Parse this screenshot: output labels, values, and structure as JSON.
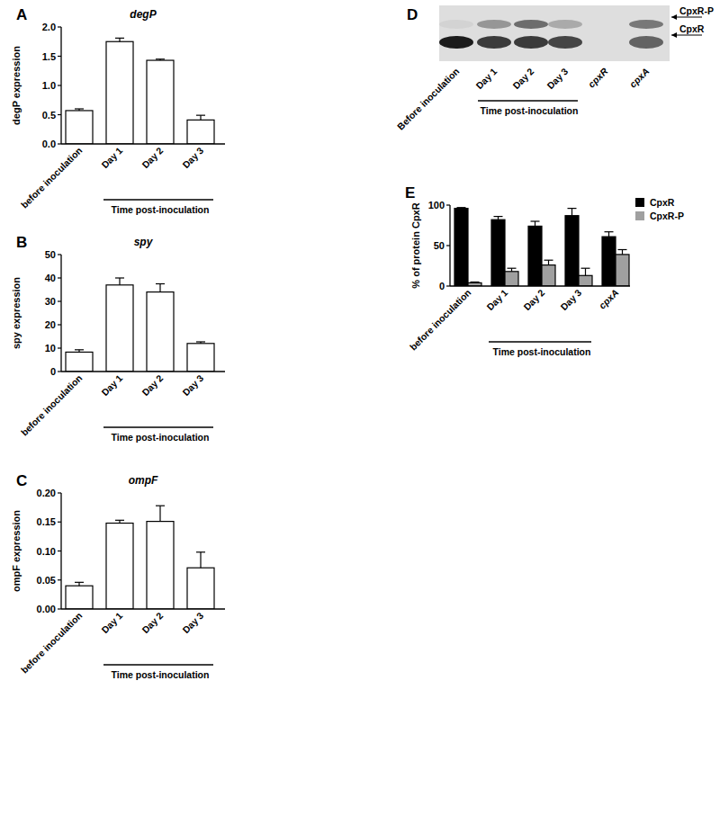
{
  "chart_data": [
    {
      "panel_label": "A",
      "type": "bar",
      "title": "degP",
      "ylabel": "degP expression",
      "categories": [
        "before inoculation",
        "Day 1",
        "Day 2",
        "Day 3"
      ],
      "values": [
        0.57,
        1.75,
        1.43,
        0.41
      ],
      "errors": [
        0.03,
        0.06,
        0.02,
        0.08
      ],
      "color": "#ffffff",
      "ylim": [
        0,
        2
      ],
      "yticks": [
        {
          "value": 0,
          "label": "0.0"
        },
        {
          "value": 0.5,
          "label": "0.5"
        },
        {
          "value": 1,
          "label": "1.0"
        },
        {
          "value": 1.5,
          "label": "1.5"
        },
        {
          "value": 2,
          "label": "2.0"
        }
      ],
      "group_label": "Time post-inoculation"
    },
    {
      "panel_label": "B",
      "type": "bar",
      "title": "spy",
      "ylabel": "spy expression",
      "categories": [
        "before inoculation",
        "Day 1",
        "Day 2",
        "Day 3"
      ],
      "values": [
        8.3,
        37,
        34,
        12
      ],
      "errors": [
        1,
        3,
        3.5,
        0.7
      ],
      "color": "#ffffff",
      "ylim": [
        0,
        50
      ],
      "yticks": [
        0,
        10,
        20,
        30,
        40,
        50
      ],
      "group_label": "Time post-inoculation"
    },
    {
      "panel_label": "C",
      "type": "bar",
      "title": "ompF",
      "ylabel": "ompF expression",
      "categories": [
        "before inoculation",
        "Day 1",
        "Day 2",
        "Day 3"
      ],
      "values": [
        0.04,
        0.148,
        0.151,
        0.071
      ],
      "errors": [
        0.006,
        0.005,
        0.027,
        0.027
      ],
      "color": "#ffffff",
      "ylim": [
        0,
        0.2
      ],
      "yticks": [
        {
          "value": 0,
          "label": "0.00"
        },
        {
          "value": 0.05,
          "label": "0.05"
        },
        {
          "value": 0.1,
          "label": "0.10"
        },
        {
          "value": 0.15,
          "label": "0.15"
        },
        {
          "value": 0.2,
          "label": "0.20"
        }
      ],
      "group_label": "Time post-inoculation"
    },
    {
      "panel_label": "E",
      "type": "bar",
      "ylabel": "% of protein CpxR",
      "categories": [
        "before inoculation",
        "Day 1",
        "Day 2",
        "Day 3",
        "cpxA"
      ],
      "series": [
        {
          "name": "CpxR",
          "color": "#000000",
          "values": [
            96,
            82,
            74,
            87,
            61
          ],
          "errors": [
            1,
            4,
            6,
            9,
            6
          ]
        },
        {
          "name": "CpxR-P",
          "color": "#a0a0a0",
          "values": [
            4,
            18,
            26,
            13,
            39
          ],
          "errors": [
            1,
            4,
            6,
            9,
            6
          ]
        }
      ],
      "ylim": [
        0,
        100
      ],
      "yticks": [
        0,
        50,
        100
      ],
      "legend": "right",
      "group_label": "Time post-inoculation"
    }
  ],
  "blot": {
    "panel_label": "D",
    "lanes": [
      "Before inoculation",
      "Day 1",
      "Day 2",
      "Day 3",
      "cpxR",
      "cpxA"
    ],
    "bands": [
      "CpxR-P",
      "CpxR"
    ],
    "group_label": "Time post-inoculation"
  }
}
